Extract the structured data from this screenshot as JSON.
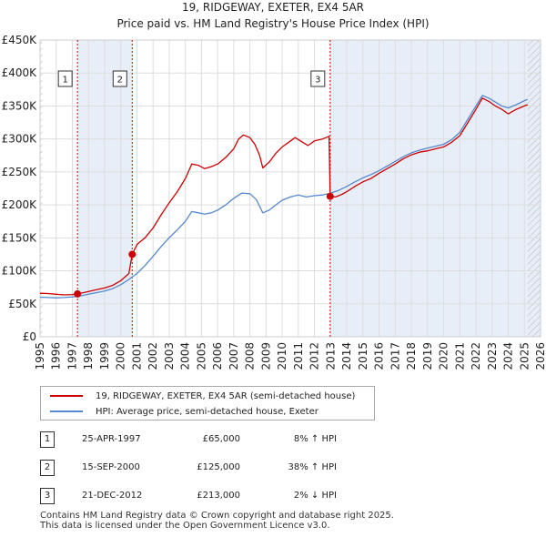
{
  "chart_data": {
    "type": "line",
    "title": "19, RIDGEWAY, EXETER, EX4 5AR",
    "subtitle": "Price paid vs. HM Land Registry's House Price Index (HPI)",
    "xlim": [
      1995,
      2026
    ],
    "ylim": [
      0,
      450000
    ],
    "x_ticks": [
      "1995",
      "1996",
      "1997",
      "1998",
      "1999",
      "2000",
      "2001",
      "2002",
      "2003",
      "2004",
      "2005",
      "2006",
      "2007",
      "2008",
      "2009",
      "2010",
      "2011",
      "2012",
      "2013",
      "2014",
      "2015",
      "2016",
      "2017",
      "2018",
      "2019",
      "2020",
      "2021",
      "2022",
      "2023",
      "2024",
      "2025",
      "2026"
    ],
    "y_ticks": [
      {
        "value": 0,
        "label": "£0"
      },
      {
        "value": 50000,
        "label": "£50K"
      },
      {
        "value": 100000,
        "label": "£100K"
      },
      {
        "value": 150000,
        "label": "£150K"
      },
      {
        "value": 200000,
        "label": "£200K"
      },
      {
        "value": 250000,
        "label": "£250K"
      },
      {
        "value": 300000,
        "label": "£300K"
      },
      {
        "value": 350000,
        "label": "£350K"
      },
      {
        "value": 400000,
        "label": "£400K"
      },
      {
        "value": 450000,
        "label": "£450K"
      }
    ],
    "shaded_ranges": [
      [
        1997.32,
        2000.71
      ],
      [
        2012.97,
        2026
      ]
    ],
    "hatched_ranges": [
      [
        1995,
        1995.15
      ],
      [
        2025.2,
        2026
      ]
    ],
    "series": [
      {
        "name": "19, RIDGEWAY, EXETER, EX4 5AR (semi-detached house)",
        "color": "#cc0000",
        "points": [
          [
            1995,
            66000
          ],
          [
            1995.5,
            65500
          ],
          [
            1996,
            64500
          ],
          [
            1996.5,
            63500
          ],
          [
            1997,
            64000
          ],
          [
            1997.32,
            65000
          ],
          [
            1997.8,
            67500
          ],
          [
            1998.5,
            71500
          ],
          [
            1999,
            74000
          ],
          [
            1999.5,
            78000
          ],
          [
            2000,
            85000
          ],
          [
            2000.5,
            96000
          ],
          [
            2000.71,
            125000
          ],
          [
            2001,
            140000
          ],
          [
            2001.5,
            150000
          ],
          [
            2002,
            165000
          ],
          [
            2002.5,
            185000
          ],
          [
            2003,
            203000
          ],
          [
            2003.5,
            220000
          ],
          [
            2004,
            240000
          ],
          [
            2004.4,
            262000
          ],
          [
            2004.8,
            260000
          ],
          [
            2005.2,
            255000
          ],
          [
            2005.6,
            258000
          ],
          [
            2006,
            262000
          ],
          [
            2006.5,
            272000
          ],
          [
            2007,
            285000
          ],
          [
            2007.3,
            300000
          ],
          [
            2007.6,
            306000
          ],
          [
            2008,
            302000
          ],
          [
            2008.3,
            292000
          ],
          [
            2008.6,
            275000
          ],
          [
            2008.8,
            256000
          ],
          [
            2009.2,
            265000
          ],
          [
            2009.6,
            278000
          ],
          [
            2010,
            288000
          ],
          [
            2010.4,
            295000
          ],
          [
            2010.8,
            302000
          ],
          [
            2011.2,
            296000
          ],
          [
            2011.6,
            290000
          ],
          [
            2012,
            297000
          ],
          [
            2012.5,
            300000
          ],
          [
            2012.9,
            304000
          ],
          [
            2012.97,
            213000
          ],
          [
            2013.3,
            212000
          ],
          [
            2013.7,
            216000
          ],
          [
            2014,
            220000
          ],
          [
            2014.5,
            228000
          ],
          [
            2015,
            235000
          ],
          [
            2015.5,
            240000
          ],
          [
            2016,
            248000
          ],
          [
            2016.5,
            255000
          ],
          [
            2017,
            262000
          ],
          [
            2017.5,
            270000
          ],
          [
            2018,
            276000
          ],
          [
            2018.5,
            280000
          ],
          [
            2019,
            282000
          ],
          [
            2019.5,
            285000
          ],
          [
            2020,
            288000
          ],
          [
            2020.5,
            295000
          ],
          [
            2021,
            305000
          ],
          [
            2021.5,
            325000
          ],
          [
            2022,
            345000
          ],
          [
            2022.4,
            362000
          ],
          [
            2022.8,
            357000
          ],
          [
            2023.2,
            350000
          ],
          [
            2023.6,
            345000
          ],
          [
            2024,
            338000
          ],
          [
            2024.5,
            345000
          ],
          [
            2025,
            350000
          ],
          [
            2025.2,
            352000
          ]
        ]
      },
      {
        "name": "HPI: Average price, semi-detached house, Exeter",
        "color": "#5588cc",
        "points": [
          [
            1995,
            60000
          ],
          [
            1995.5,
            59500
          ],
          [
            1996,
            59000
          ],
          [
            1996.5,
            59500
          ],
          [
            1997,
            60500
          ],
          [
            1997.5,
            62000
          ],
          [
            1998,
            64500
          ],
          [
            1998.5,
            67000
          ],
          [
            1999,
            69500
          ],
          [
            1999.5,
            73000
          ],
          [
            2000,
            79000
          ],
          [
            2000.5,
            87000
          ],
          [
            2001,
            96000
          ],
          [
            2001.5,
            108000
          ],
          [
            2002,
            122000
          ],
          [
            2002.5,
            137000
          ],
          [
            2003,
            150000
          ],
          [
            2003.5,
            162000
          ],
          [
            2004,
            175000
          ],
          [
            2004.4,
            190000
          ],
          [
            2004.8,
            188000
          ],
          [
            2005.2,
            186000
          ],
          [
            2005.6,
            188000
          ],
          [
            2006,
            192000
          ],
          [
            2006.5,
            200000
          ],
          [
            2007,
            210000
          ],
          [
            2007.5,
            218000
          ],
          [
            2008,
            217000
          ],
          [
            2008.4,
            208000
          ],
          [
            2008.8,
            188000
          ],
          [
            2009.2,
            192000
          ],
          [
            2009.6,
            200000
          ],
          [
            2010,
            207000
          ],
          [
            2010.5,
            212000
          ],
          [
            2011,
            215000
          ],
          [
            2011.5,
            212000
          ],
          [
            2012,
            214000
          ],
          [
            2012.5,
            215000
          ],
          [
            2013,
            218000
          ],
          [
            2013.5,
            222000
          ],
          [
            2014,
            228000
          ],
          [
            2014.5,
            235000
          ],
          [
            2015,
            241000
          ],
          [
            2015.5,
            246000
          ],
          [
            2016,
            252000
          ],
          [
            2016.5,
            259000
          ],
          [
            2017,
            266000
          ],
          [
            2017.5,
            273000
          ],
          [
            2018,
            279000
          ],
          [
            2018.5,
            283000
          ],
          [
            2019,
            286000
          ],
          [
            2019.5,
            289000
          ],
          [
            2020,
            292000
          ],
          [
            2020.5,
            299000
          ],
          [
            2021,
            310000
          ],
          [
            2021.5,
            330000
          ],
          [
            2022,
            350000
          ],
          [
            2022.4,
            366000
          ],
          [
            2022.8,
            362000
          ],
          [
            2023.2,
            356000
          ],
          [
            2023.6,
            350000
          ],
          [
            2024,
            347000
          ],
          [
            2024.5,
            352000
          ],
          [
            2025,
            358000
          ],
          [
            2025.2,
            360000
          ]
        ]
      }
    ],
    "sales": [
      {
        "num": "1",
        "date": "25-APR-1997",
        "price": "£65,000",
        "hpi": "8% ↑ HPI",
        "x": 1997.32,
        "value": 65000
      },
      {
        "num": "2",
        "date": "15-SEP-2000",
        "price": "£125,000",
        "hpi": "38% ↑ HPI",
        "x": 2000.71,
        "value": 125000
      },
      {
        "num": "3",
        "date": "21-DEC-2012",
        "price": "£213,000",
        "hpi": "2% ↓ HPI",
        "x": 2012.97,
        "value": 213000
      }
    ]
  },
  "legend": {
    "property_label": "19, RIDGEWAY, EXETER, EX4 5AR (semi-detached house)",
    "hpi_label": "HPI: Average price, semi-detached house, Exeter"
  },
  "footer": {
    "line1": "Contains HM Land Registry data © Crown copyright and database right 2025.",
    "line2": "This data is licensed under the Open Government Licence v3.0."
  }
}
